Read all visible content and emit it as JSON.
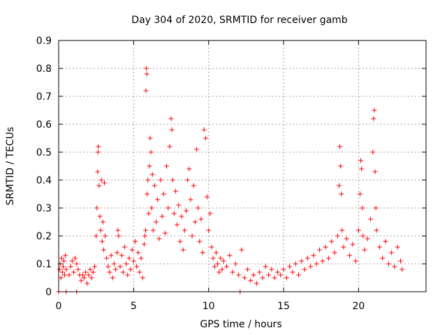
{
  "chart_data": {
    "type": "scatter",
    "title": "Day 304 of 2020, SRMTID for receiver gamb",
    "xlabel": "GPS time / hours",
    "ylabel": "SRMTID / TECUs",
    "xlim": [
      0,
      24.5
    ],
    "ylim": [
      0,
      0.9
    ],
    "xticks": [
      0,
      5,
      10,
      15,
      20
    ],
    "xtick_labels": [
      "0",
      "5",
      "10",
      "15",
      "20"
    ],
    "yticks": [
      0,
      0.1,
      0.2,
      0.3,
      0.4,
      0.5,
      0.6,
      0.7,
      0.8,
      0.9
    ],
    "ytick_labels": [
      "0",
      "0.1",
      "0.2",
      "0.3",
      "0.4",
      "0.5",
      "0.6",
      "0.7",
      "0.8",
      "0.9"
    ],
    "grid": true,
    "marker": "+",
    "color": "#ff0000",
    "series": [
      {
        "name": "SRMTID",
        "points": [
          [
            0.05,
            0.08
          ],
          [
            0.1,
            0.1
          ],
          [
            0.15,
            0.05
          ],
          [
            0.2,
            0.12
          ],
          [
            0.25,
            0.07
          ],
          [
            0.3,
            0.09
          ],
          [
            0.35,
            0.11
          ],
          [
            0.4,
            0.06
          ],
          [
            0.45,
            0.13
          ],
          [
            0.5,
            0.08
          ],
          [
            0.7,
            0.06
          ],
          [
            0.8,
            0.09
          ],
          [
            0.9,
            0.11
          ],
          [
            1.0,
            0.07
          ],
          [
            1.1,
            0.12
          ],
          [
            1.2,
            0.1
          ],
          [
            1.3,
            0.08
          ],
          [
            1.4,
            0.06
          ],
          [
            1.5,
            0.04
          ],
          [
            1.6,
            0.06
          ],
          [
            1.7,
            0.05
          ],
          [
            1.8,
            0.07
          ],
          [
            1.9,
            0.03
          ],
          [
            2.0,
            0.06
          ],
          [
            2.1,
            0.08
          ],
          [
            2.2,
            0.05
          ],
          [
            2.3,
            0.07
          ],
          [
            2.4,
            0.09
          ],
          [
            2.5,
            0.2
          ],
          [
            2.55,
            0.3
          ],
          [
            2.6,
            0.43
          ],
          [
            2.62,
            0.5
          ],
          [
            2.65,
            0.52
          ],
          [
            2.7,
            0.38
          ],
          [
            2.75,
            0.27
          ],
          [
            2.8,
            0.22
          ],
          [
            2.85,
            0.4
          ],
          [
            2.9,
            0.18
          ],
          [
            2.95,
            0.25
          ],
          [
            3.0,
            0.15
          ],
          [
            3.05,
            0.39
          ],
          [
            3.1,
            0.2
          ],
          [
            3.2,
            0.12
          ],
          [
            3.3,
            0.09
          ],
          [
            3.4,
            0.07
          ],
          [
            3.5,
            0.13
          ],
          [
            3.6,
            0.05
          ],
          [
            3.7,
            0.1
          ],
          [
            3.8,
            0.08
          ],
          [
            3.9,
            0.14
          ],
          [
            3.95,
            0.22
          ],
          [
            4.0,
            0.2
          ],
          [
            4.1,
            0.09
          ],
          [
            4.2,
            0.13
          ],
          [
            4.3,
            0.07
          ],
          [
            4.4,
            0.16
          ],
          [
            4.5,
            0.1
          ],
          [
            4.6,
            0.06
          ],
          [
            4.7,
            0.12
          ],
          [
            4.8,
            0.08
          ],
          [
            4.9,
            0.15
          ],
          [
            5.0,
            0.11
          ],
          [
            5.1,
            0.18
          ],
          [
            5.2,
            0.09
          ],
          [
            5.3,
            0.14
          ],
          [
            5.4,
            0.07
          ],
          [
            5.5,
            0.12
          ],
          [
            5.6,
            0.05
          ],
          [
            5.7,
            0.17
          ],
          [
            5.75,
            0.2
          ],
          [
            5.8,
            0.22
          ],
          [
            5.82,
            0.72
          ],
          [
            5.85,
            0.8
          ],
          [
            5.88,
            0.78
          ],
          [
            5.9,
            0.35
          ],
          [
            5.95,
            0.4
          ],
          [
            6.0,
            0.28
          ],
          [
            6.05,
            0.45
          ],
          [
            6.1,
            0.55
          ],
          [
            6.15,
            0.5
          ],
          [
            6.2,
            0.3
          ],
          [
            6.25,
            0.42
          ],
          [
            6.3,
            0.22
          ],
          [
            6.4,
            0.38
          ],
          [
            6.5,
            0.25
          ],
          [
            6.6,
            0.33
          ],
          [
            6.7,
            0.19
          ],
          [
            6.8,
            0.4
          ],
          [
            6.9,
            0.27
          ],
          [
            7.0,
            0.35
          ],
          [
            7.1,
            0.21
          ],
          [
            7.2,
            0.45
          ],
          [
            7.3,
            0.3
          ],
          [
            7.4,
            0.52
          ],
          [
            7.5,
            0.62
          ],
          [
            7.55,
            0.58
          ],
          [
            7.6,
            0.4
          ],
          [
            7.7,
            0.28
          ],
          [
            7.8,
            0.36
          ],
          [
            7.9,
            0.24
          ],
          [
            8.0,
            0.31
          ],
          [
            8.1,
            0.18
          ],
          [
            8.2,
            0.27
          ],
          [
            8.3,
            0.15
          ],
          [
            8.4,
            0.22
          ],
          [
            8.5,
            0.29
          ],
          [
            8.6,
            0.4
          ],
          [
            8.7,
            0.44
          ],
          [
            8.8,
            0.33
          ],
          [
            8.9,
            0.2
          ],
          [
            9.0,
            0.38
          ],
          [
            9.1,
            0.25
          ],
          [
            9.2,
            0.51
          ],
          [
            9.3,
            0.3
          ],
          [
            9.4,
            0.18
          ],
          [
            9.5,
            0.26
          ],
          [
            9.6,
            0.14
          ],
          [
            9.7,
            0.58
          ],
          [
            9.8,
            0.55
          ],
          [
            9.9,
            0.34
          ],
          [
            10.0,
            0.22
          ],
          [
            10.1,
            0.28
          ],
          [
            10.2,
            0.16
          ],
          [
            10.3,
            0.12
          ],
          [
            10.4,
            0.09
          ],
          [
            10.5,
            0.14
          ],
          [
            10.6,
            0.1
          ],
          [
            10.7,
            0.07
          ],
          [
            10.8,
            0.12
          ],
          [
            10.9,
            0.08
          ],
          [
            11.0,
            0.11
          ],
          [
            11.2,
            0.09
          ],
          [
            11.4,
            0.13
          ],
          [
            11.6,
            0.07
          ],
          [
            11.8,
            0.1
          ],
          [
            12.0,
            0.06
          ],
          [
            12.2,
            0.15
          ],
          [
            12.4,
            0.05
          ],
          [
            12.6,
            0.08
          ],
          [
            12.8,
            0.04
          ],
          [
            13.0,
            0.06
          ],
          [
            13.2,
            0.03
          ],
          [
            13.4,
            0.07
          ],
          [
            13.6,
            0.05
          ],
          [
            13.8,
            0.09
          ],
          [
            14.0,
            0.06
          ],
          [
            14.2,
            0.08
          ],
          [
            14.4,
            0.05
          ],
          [
            14.6,
            0.07
          ],
          [
            14.8,
            0.06
          ],
          [
            15.0,
            0.08
          ],
          [
            15.2,
            0.05
          ],
          [
            15.4,
            0.09
          ],
          [
            15.6,
            0.07
          ],
          [
            15.8,
            0.1
          ],
          [
            16.0,
            0.06
          ],
          [
            16.2,
            0.11
          ],
          [
            16.4,
            0.08
          ],
          [
            16.6,
            0.12
          ],
          [
            16.8,
            0.09
          ],
          [
            17.0,
            0.13
          ],
          [
            17.2,
            0.1
          ],
          [
            17.4,
            0.15
          ],
          [
            17.6,
            0.11
          ],
          [
            17.8,
            0.16
          ],
          [
            18.0,
            0.12
          ],
          [
            18.2,
            0.18
          ],
          [
            18.4,
            0.14
          ],
          [
            18.6,
            0.2
          ],
          [
            18.7,
            0.38
          ],
          [
            18.75,
            0.52
          ],
          [
            18.8,
            0.45
          ],
          [
            18.85,
            0.35
          ],
          [
            18.9,
            0.22
          ],
          [
            19.0,
            0.16
          ],
          [
            19.2,
            0.19
          ],
          [
            19.4,
            0.13
          ],
          [
            19.6,
            0.17
          ],
          [
            19.8,
            0.11
          ],
          [
            20.0,
            0.22
          ],
          [
            20.1,
            0.35
          ],
          [
            20.15,
            0.47
          ],
          [
            20.2,
            0.44
          ],
          [
            20.25,
            0.3
          ],
          [
            20.3,
            0.2
          ],
          [
            20.4,
            0.15
          ],
          [
            20.6,
            0.19
          ],
          [
            20.8,
            0.26
          ],
          [
            20.95,
            0.5
          ],
          [
            21.0,
            0.62
          ],
          [
            21.05,
            0.65
          ],
          [
            21.1,
            0.43
          ],
          [
            21.15,
            0.3
          ],
          [
            21.2,
            0.22
          ],
          [
            21.4,
            0.16
          ],
          [
            21.6,
            0.12
          ],
          [
            21.8,
            0.18
          ],
          [
            22.0,
            0.1
          ],
          [
            22.2,
            0.14
          ],
          [
            22.4,
            0.09
          ],
          [
            22.6,
            0.16
          ],
          [
            22.8,
            0.11
          ],
          [
            22.9,
            0.08
          ],
          [
            0.0,
            0.0
          ],
          [
            0.5,
            0.0
          ],
          [
            1.2,
            0.0
          ],
          [
            12.1,
            0.0
          ]
        ]
      }
    ]
  }
}
